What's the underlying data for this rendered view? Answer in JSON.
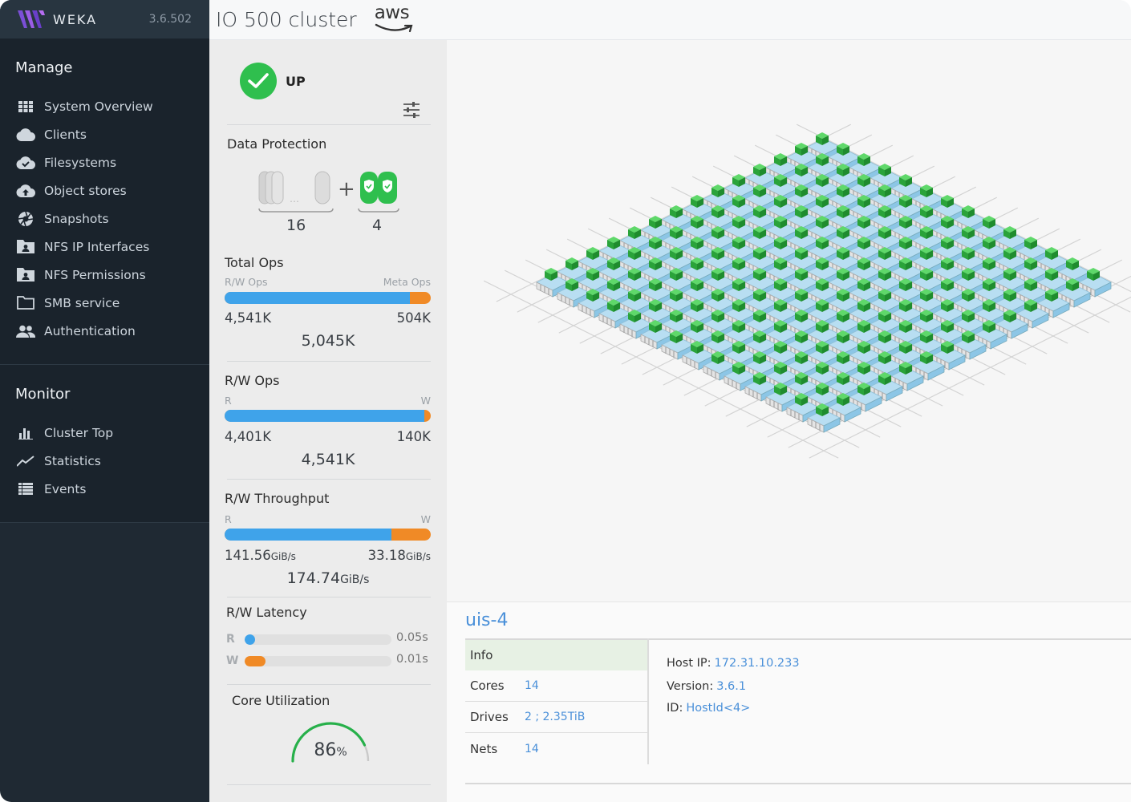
{
  "app": {
    "brand": "WEKA",
    "version": "3.6.502"
  },
  "header": {
    "cluster_name": "IO 500 cluster",
    "cloud_logo": "aws"
  },
  "sidebar": {
    "manage": {
      "title": "Manage",
      "items": [
        {
          "label": "System Overview",
          "icon": "grid-icon"
        },
        {
          "label": "Clients",
          "icon": "cloud-icon"
        },
        {
          "label": "Filesystems",
          "icon": "cloud-check-icon"
        },
        {
          "label": "Object stores",
          "icon": "cloud-upload-icon"
        },
        {
          "label": "Snapshots",
          "icon": "aperture-icon"
        },
        {
          "label": "NFS IP Interfaces",
          "icon": "folder-user-icon"
        },
        {
          "label": "NFS Permissions",
          "icon": "folder-user-icon"
        },
        {
          "label": "SMB service",
          "icon": "folder-icon"
        },
        {
          "label": "Authentication",
          "icon": "users-icon"
        }
      ]
    },
    "monitor": {
      "title": "Monitor",
      "items": [
        {
          "label": "Cluster Top",
          "icon": "bar-chart-icon"
        },
        {
          "label": "Statistics",
          "icon": "trend-line-icon"
        },
        {
          "label": "Events",
          "icon": "list-icon"
        }
      ]
    }
  },
  "stats": {
    "status": "UP",
    "data_protection": {
      "title": "Data Protection",
      "data_drives": "16",
      "parity_drives": "4"
    },
    "total_ops": {
      "title": "Total Ops",
      "left_label": "R/W Ops",
      "right_label": "Meta Ops",
      "left_value": "4,541K",
      "right_value": "504K",
      "total": "5,045K",
      "fill_fraction": 0.9
    },
    "rw_ops": {
      "title": "R/W Ops",
      "left_label": "R",
      "right_label": "W",
      "left_value": "4,401K",
      "right_value": "140K",
      "total": "4,541K",
      "fill_fraction": 0.97
    },
    "rw_throughput": {
      "title": "R/W Throughput",
      "left_label": "R",
      "right_label": "W",
      "left_value": "141.56",
      "right_value": "33.18",
      "unit": "GiB/s",
      "total": "174.74",
      "fill_fraction": 0.81
    },
    "rw_latency": {
      "title": "R/W Latency",
      "read_label": "R",
      "write_label": "W",
      "read_value": "0.05s",
      "write_value": "0.01s",
      "read_fraction": 0.07,
      "write_fraction": 0.14
    },
    "core_utilization": {
      "title": "Core Utilization",
      "value": "86",
      "unit": "%",
      "fraction": 0.86
    }
  },
  "host": {
    "name": "uis-4",
    "info_title": "Info",
    "rows": [
      {
        "key": "Cores",
        "value": "14"
      },
      {
        "key": "Drives",
        "value": "2 ; 2.35TiB"
      },
      {
        "key": "Nets",
        "value": "14"
      }
    ],
    "host_ip_label": "Host IP:",
    "host_ip": "172.31.10.233",
    "version_label": "Version:",
    "version": "3.6.1",
    "id_label": "ID:",
    "id": "HostId<4>"
  },
  "colors": {
    "accent_blue": "#3fa3ea",
    "accent_orange": "#f08a26",
    "status_green": "#2fbf4e",
    "link_blue": "#4a90d9"
  }
}
